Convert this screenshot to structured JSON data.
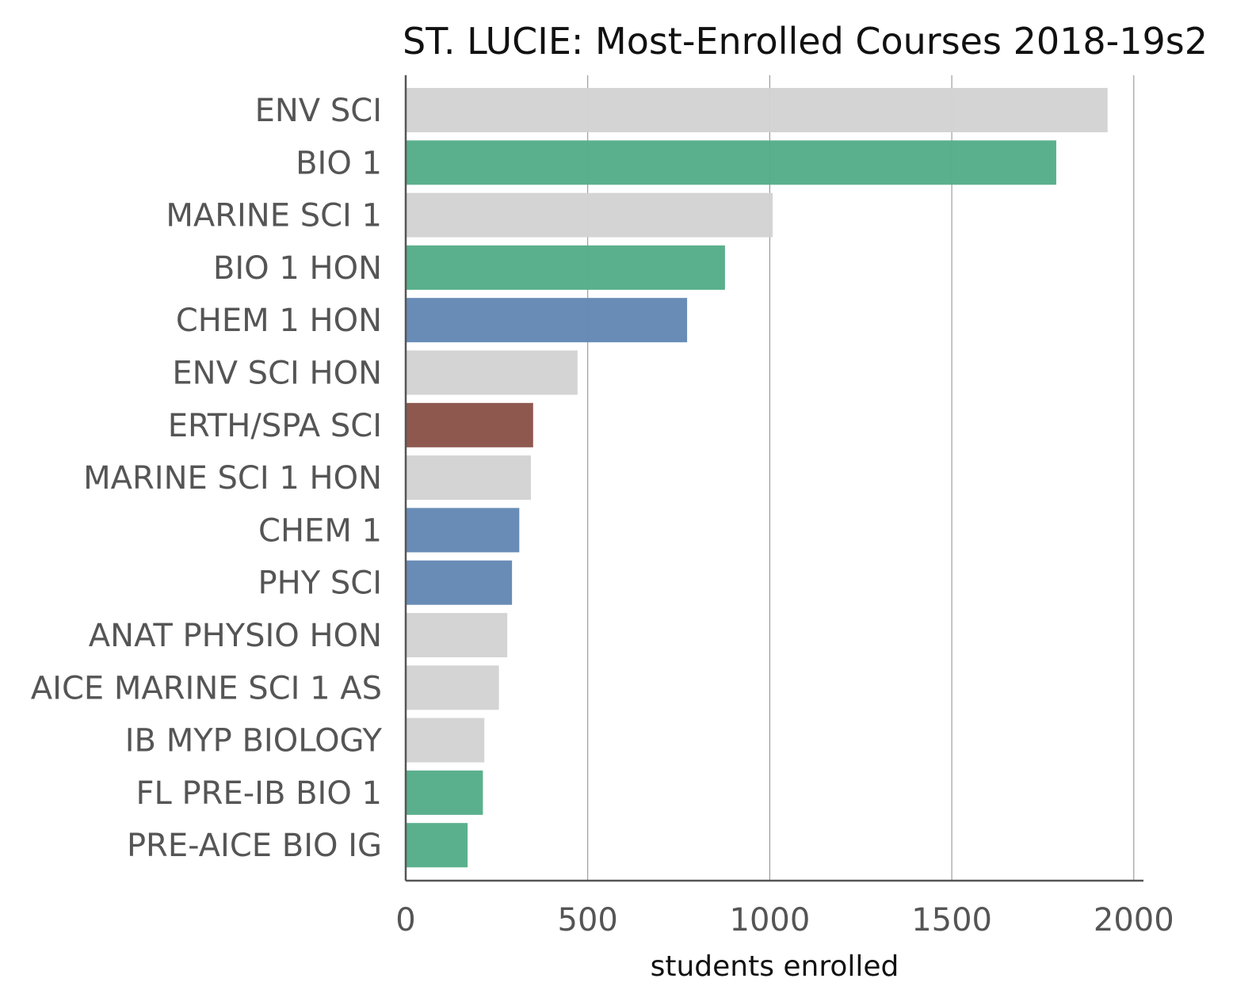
{
  "chart_data": {
    "type": "bar",
    "orientation": "horizontal",
    "title": "ST. LUCIE: Most-Enrolled Courses 2018-19s2",
    "xlabel": "students enrolled",
    "ylabel": "",
    "xlim": [
      0,
      2000
    ],
    "xticks": [
      0,
      500,
      1000,
      1500,
      2000
    ],
    "grid": "vertical gridlines",
    "categories": [
      "ENV SCI",
      "BIO 1",
      "MARINE SCI 1",
      "BIO 1 HON",
      "CHEM 1 HON",
      "ENV SCI HON",
      "ERTH/SPA SCI",
      "MARINE SCI 1 HON",
      "CHEM 1",
      "PHY SCI",
      "ANAT PHYSIO HON",
      "AICE MARINE SCI 1 AS",
      "IB MYP BIOLOGY",
      "FL PRE-IB BIO 1",
      "PRE-AICE BIO IG"
    ],
    "values": [
      1928,
      1787,
      1008,
      877,
      773,
      472,
      350,
      344,
      312,
      292,
      279,
      256,
      216,
      212,
      170
    ],
    "colors": [
      "#d3d3d3",
      "#55ad89",
      "#d3d3d3",
      "#55ad89",
      "#6388b4",
      "#d3d3d3",
      "#8a5349",
      "#d3d3d3",
      "#6388b4",
      "#6388b4",
      "#d3d3d3",
      "#d3d3d3",
      "#d3d3d3",
      "#55ad89",
      "#55ad89"
    ]
  }
}
